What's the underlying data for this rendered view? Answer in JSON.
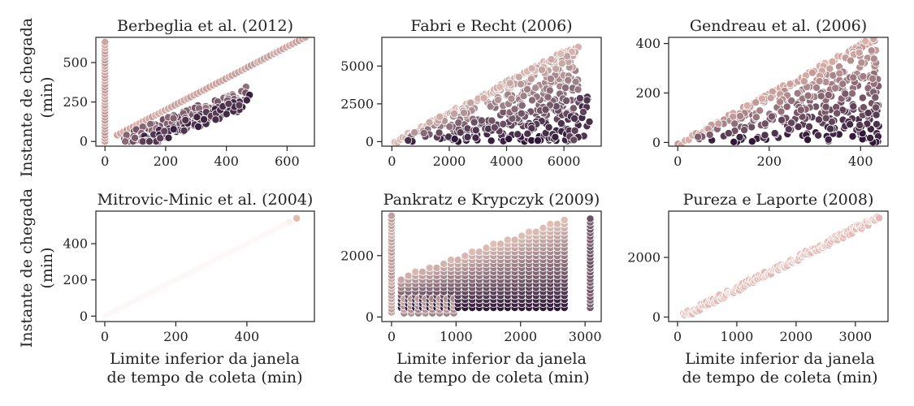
{
  "figure": {
    "ylabel_lines": [
      "Instante de chegada",
      "(min)"
    ],
    "xlabel_lines": [
      "Limite inferior da janela",
      "de tempo de coleta (min)"
    ]
  },
  "chart_data": [
    {
      "type": "scatter",
      "title": "Berbeglia et al. (2012)",
      "xlim": [
        -30,
        690
      ],
      "ylim": [
        -30,
        660
      ],
      "xticks": [
        0,
        200,
        400,
        600
      ],
      "yticks": [
        0,
        250,
        500
      ],
      "palette": [
        "#e4b9b0",
        "#2f1738"
      ],
      "groups": [
        {
          "kind": "vertical",
          "x": 0,
          "y_range": [
            0,
            630
          ],
          "count": 34,
          "shade": 0.15
        },
        {
          "kind": "diagonal",
          "x_range": [
            40,
            660
          ],
          "offset_range": [
            0,
            0
          ],
          "count": 60,
          "shade": 0.12
        },
        {
          "kind": "band",
          "x_range": [
            60,
            480
          ],
          "slope": 0.75,
          "intercept": -40,
          "spread": 40,
          "count": 110,
          "shade": 0.55
        },
        {
          "kind": "band",
          "x_range": [
            120,
            480
          ],
          "slope": 0.75,
          "intercept": -100,
          "spread": 40,
          "count": 110,
          "shade": 0.85
        }
      ]
    },
    {
      "type": "scatter",
      "title": "Fabri e Recht (2006)",
      "xlim": [
        -350,
        7300
      ],
      "ylim": [
        -300,
        6900
      ],
      "xticks": [
        0,
        2000,
        4000,
        6000
      ],
      "yticks": [
        0,
        2500,
        5000
      ],
      "palette": [
        "#e8c7bd",
        "#2f1738"
      ],
      "groups": [
        {
          "kind": "diagonal",
          "x_range": [
            100,
            6500
          ],
          "offset_range": [
            -300,
            0
          ],
          "count": 70,
          "shade": 0.1
        },
        {
          "kind": "triangle",
          "x_range": [
            300,
            6500
          ],
          "count": 380,
          "shade_from_position": true
        },
        {
          "kind": "column",
          "x_range": [
            6200,
            7000
          ],
          "y_range": [
            100,
            3000
          ],
          "count": 20,
          "shade": 0.8
        }
      ]
    },
    {
      "type": "scatter",
      "title": "Gendreau et al. (2006)",
      "xlim": [
        -20,
        460
      ],
      "ylim": [
        -15,
        425
      ],
      "xticks": [
        0,
        200,
        400
      ],
      "yticks": [
        0,
        200,
        400
      ],
      "palette": [
        "#e4b9b0",
        "#2f1738"
      ],
      "groups": [
        {
          "kind": "diagonal",
          "x_range": [
            0,
            430
          ],
          "offset_range": [
            -20,
            0
          ],
          "count": 55,
          "shade": 0.1
        },
        {
          "kind": "triangle",
          "x_range": [
            20,
            440
          ],
          "count": 320,
          "shade_from_position": true
        }
      ]
    },
    {
      "type": "scatter",
      "title": "Mitrovic-Minic et al. (2004)",
      "xlim": [
        -25,
        590
      ],
      "ylim": [
        -30,
        580
      ],
      "xticks": [
        0,
        200,
        400
      ],
      "yticks": [
        0,
        200,
        400
      ],
      "palette": [
        "#fbf2f2",
        "#e4b9b0"
      ],
      "groups": [
        {
          "kind": "diagonal",
          "x_range": [
            0,
            520
          ],
          "offset_range": [
            0,
            0
          ],
          "count": 150,
          "shade": 0.0
        },
        {
          "kind": "point",
          "x": 540,
          "y": 540,
          "shade": 1.0
        }
      ]
    },
    {
      "type": "scatter",
      "title": "Pankratz e Krypczyk (2009)",
      "xlim": [
        -150,
        3250
      ],
      "ylim": [
        -150,
        3450
      ],
      "xticks": [
        0,
        1000,
        2000,
        3000
      ],
      "yticks": [
        0,
        2000
      ],
      "palette": [
        "#e8c7bd",
        "#2f1738"
      ],
      "groups": [
        {
          "kind": "vertical",
          "x": 0,
          "y_range": [
            150,
            3300
          ],
          "count": 30,
          "shade": 0.2
        },
        {
          "kind": "vertical",
          "x": 3080,
          "y_range": [
            300,
            3200
          ],
          "count": 26,
          "shade": 0.6
        },
        {
          "kind": "grid",
          "x_range": [
            150,
            2700
          ],
          "x_step": 110,
          "y_step": 130,
          "count": 0,
          "shade_from_position": true
        }
      ]
    },
    {
      "type": "scatter",
      "title": "Pureza e Laporte (2008)",
      "xlim": [
        -150,
        3550
      ],
      "ylim": [
        -150,
        3550
      ],
      "xticks": [
        0,
        1000,
        2000,
        3000
      ],
      "yticks": [
        0,
        2000
      ],
      "palette": [
        "#f1d6cc",
        "#d6a1a2"
      ],
      "groups": [
        {
          "kind": "diagonal",
          "x_range": [
            100,
            3400
          ],
          "offset_range": [
            -150,
            50
          ],
          "count": 180,
          "shade": 0.5
        }
      ]
    }
  ]
}
